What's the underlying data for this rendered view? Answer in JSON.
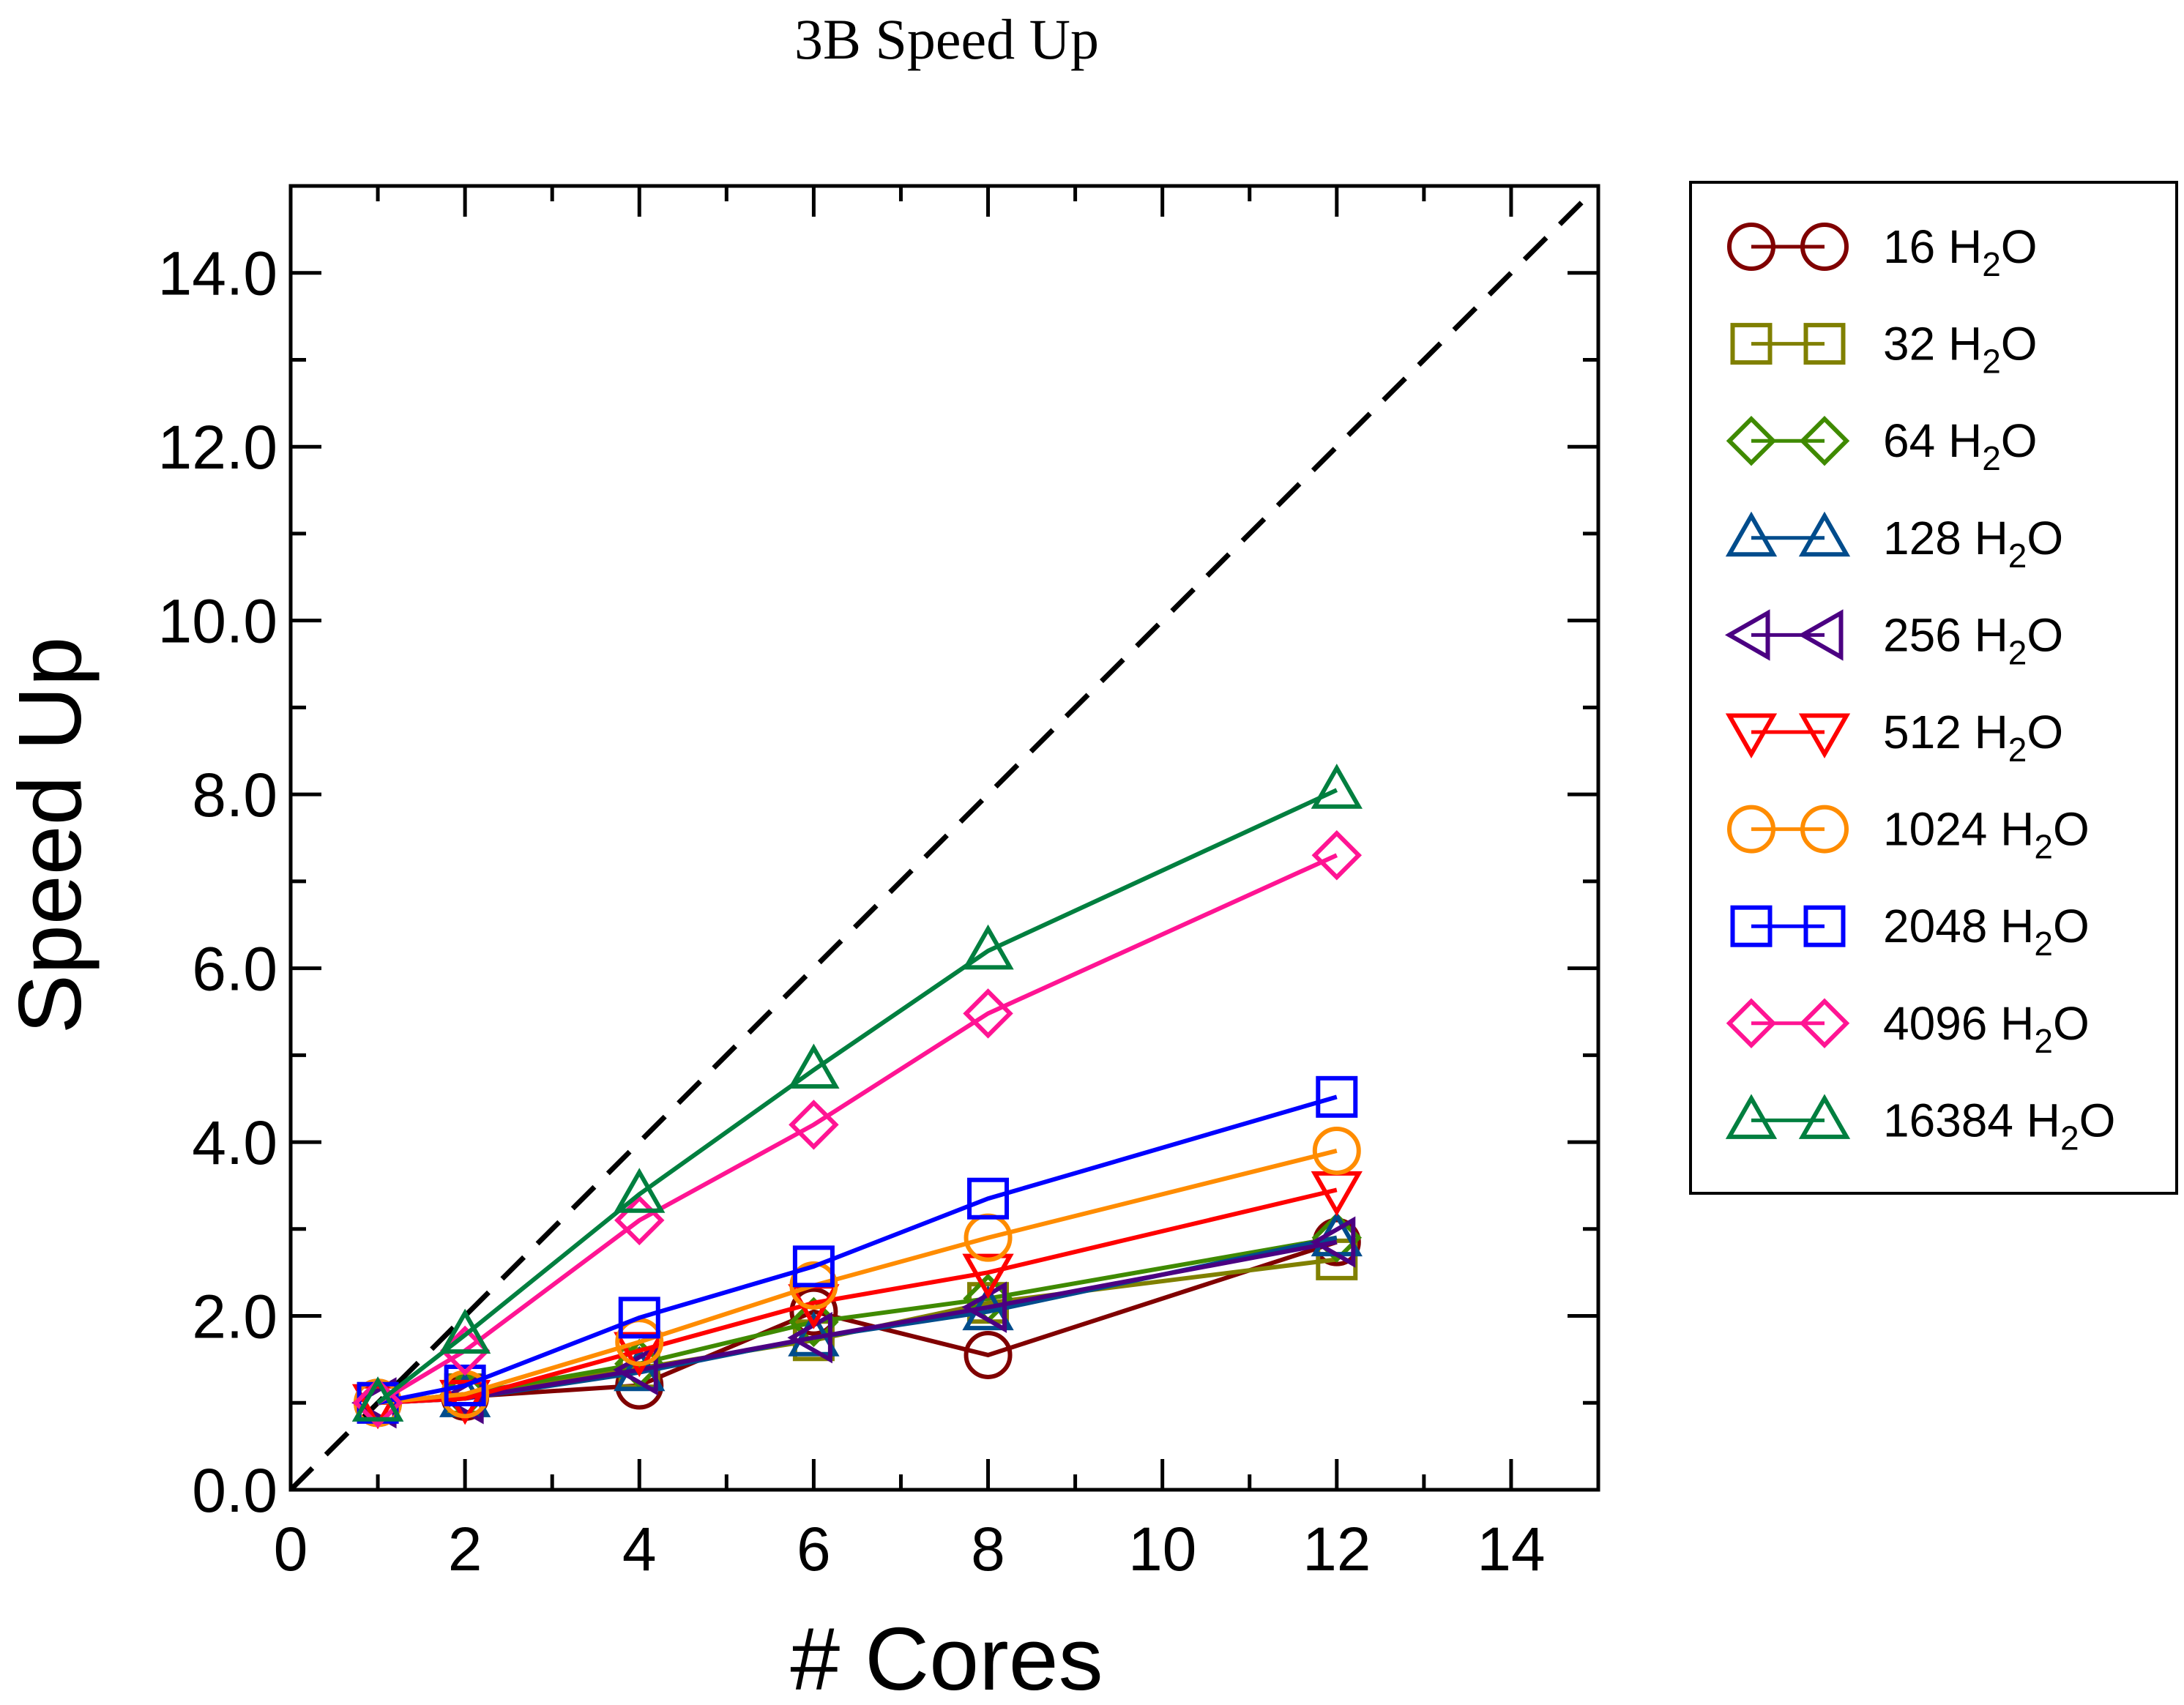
{
  "chart_data": {
    "type": "line",
    "title": "3B Speed Up",
    "xlabel": "# Cores",
    "ylabel": "Speed Up",
    "xlim": [
      0,
      15
    ],
    "ylim": [
      0,
      15
    ],
    "xticks": [
      "0",
      "2",
      "4",
      "6",
      "8",
      "10",
      "12",
      "14"
    ],
    "yticks": [
      "0.0",
      "2.0",
      "4.0",
      "6.0",
      "8.0",
      "10.0",
      "12.0",
      "14.0"
    ],
    "grid": false,
    "legend_position": "right-outside",
    "ideal_line": {
      "style": "dashed",
      "color": "#000000",
      "x": [
        0,
        15
      ],
      "y": [
        0,
        15
      ]
    },
    "x": [
      1,
      2,
      4,
      6,
      8,
      12
    ],
    "series": [
      {
        "name": "16 H2O",
        "marker": "circle",
        "color": "#800000",
        "values": [
          1.0,
          1.07,
          1.2,
          2.05,
          1.55,
          2.85
        ]
      },
      {
        "name": "32 H2O",
        "marker": "square",
        "color": "#808000",
        "values": [
          1.0,
          1.1,
          1.4,
          1.72,
          2.15,
          2.65
        ]
      },
      {
        "name": "64 H2O",
        "marker": "diamond",
        "color": "#3f8a00",
        "values": [
          1.0,
          1.1,
          1.45,
          1.93,
          2.2,
          2.9
        ]
      },
      {
        "name": "128 H2O",
        "marker": "triangle-up",
        "color": "#004c8c",
        "values": [
          1.0,
          1.05,
          1.35,
          1.75,
          2.05,
          2.9
        ]
      },
      {
        "name": "256 H2O",
        "marker": "triangle-left",
        "color": "#4b0082",
        "values": [
          1.0,
          1.05,
          1.38,
          1.75,
          2.1,
          2.85
        ]
      },
      {
        "name": "512 H2O",
        "marker": "triangle-down",
        "color": "#ff0000",
        "values": [
          1.0,
          1.05,
          1.6,
          2.15,
          2.5,
          3.45
        ]
      },
      {
        "name": "1024 H2O",
        "marker": "circle",
        "color": "#ff8c00",
        "values": [
          1.0,
          1.1,
          1.7,
          2.35,
          2.9,
          3.9
        ]
      },
      {
        "name": "2048 H2O",
        "marker": "square",
        "color": "#0000ff",
        "values": [
          1.0,
          1.2,
          1.98,
          2.57,
          3.35,
          4.52
        ]
      },
      {
        "name": "4096 H2O",
        "marker": "diamond",
        "color": "#ff1493",
        "values": [
          1.0,
          1.6,
          3.1,
          4.2,
          5.48,
          7.3
        ]
      },
      {
        "name": "16384 H2O",
        "marker": "triangle-up",
        "color": "#007f3f",
        "values": [
          1.0,
          1.78,
          3.4,
          4.83,
          6.2,
          8.05
        ]
      }
    ]
  }
}
